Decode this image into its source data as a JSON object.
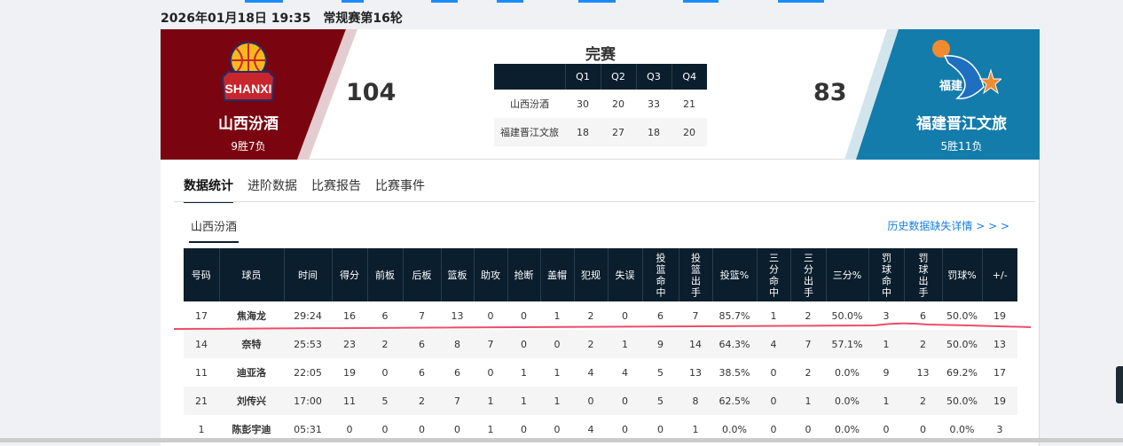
{
  "header": {
    "date": "2026年01月18日 19:35",
    "round": "常规赛第16轮"
  },
  "game": {
    "status": "完赛",
    "home": {
      "name": "山西汾酒",
      "record": "9胜7负",
      "score": "104",
      "color": "#7a0510",
      "logo_text": "SHANXI"
    },
    "away": {
      "name": "福建晋江文旅",
      "record": "5胜11负",
      "score": "83",
      "color": "#137cab",
      "logo_text": "福建"
    },
    "quarters": {
      "headers": [
        "",
        "Q1",
        "Q2",
        "Q3",
        "Q4"
      ],
      "rows": [
        [
          "山西汾酒",
          "30",
          "20",
          "33",
          "21"
        ],
        [
          "福建晋江文旅",
          "18",
          "27",
          "18",
          "20"
        ]
      ]
    }
  },
  "tabs": [
    "数据统计",
    "进阶数据",
    "比赛报告",
    "比赛事件"
  ],
  "subtab": "山西汾酒",
  "history_link": "历史数据缺失详情 > > >",
  "stats": {
    "headers": [
      "号码",
      "球员",
      "时间",
      "得分",
      "前板",
      "后板",
      "篮板",
      "助攻",
      "抢断",
      "盖帽",
      "犯规",
      "失误",
      "投篮命中",
      "投篮出手",
      "投篮%",
      "三分命中",
      "三分出手",
      "三分%",
      "罚球命中",
      "罚球出手",
      "罚球%",
      "+/-"
    ],
    "rows": [
      [
        "17",
        "焦海龙",
        "29:24",
        "16",
        "6",
        "7",
        "13",
        "0",
        "0",
        "1",
        "2",
        "0",
        "6",
        "7",
        "85.7%",
        "1",
        "2",
        "50.0%",
        "3",
        "6",
        "50.0%",
        "19"
      ],
      [
        "14",
        "奈特",
        "25:53",
        "23",
        "2",
        "6",
        "8",
        "7",
        "0",
        "0",
        "2",
        "1",
        "9",
        "14",
        "64.3%",
        "4",
        "7",
        "57.1%",
        "1",
        "2",
        "50.0%",
        "13"
      ],
      [
        "11",
        "迪亚洛",
        "22:05",
        "19",
        "0",
        "6",
        "6",
        "0",
        "1",
        "1",
        "4",
        "4",
        "5",
        "13",
        "38.5%",
        "0",
        "2",
        "0.0%",
        "9",
        "13",
        "69.2%",
        "17"
      ],
      [
        "21",
        "刘传兴",
        "17:00",
        "11",
        "5",
        "2",
        "7",
        "1",
        "1",
        "1",
        "0",
        "0",
        "5",
        "8",
        "62.5%",
        "0",
        "1",
        "0.0%",
        "1",
        "2",
        "50.0%",
        "19"
      ],
      [
        "1",
        "陈彭宇迪",
        "05:31",
        "0",
        "0",
        "0",
        "0",
        "1",
        "0",
        "0",
        "4",
        "0",
        "0",
        "1",
        "0.0%",
        "0",
        "0",
        "0.0%",
        "0",
        "0",
        "0.0%",
        "3"
      ]
    ]
  }
}
